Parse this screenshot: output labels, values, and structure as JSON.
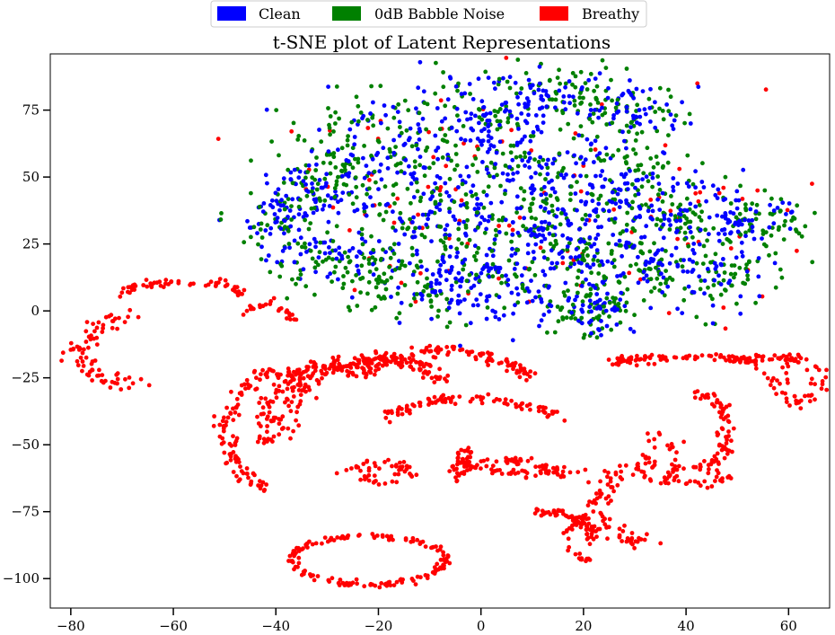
{
  "chart_data": {
    "type": "scatter",
    "title": "t-SNE plot of Latent Representations",
    "xlabel": "",
    "ylabel": "",
    "xlim": [
      -84,
      68
    ],
    "ylim": [
      -111,
      96
    ],
    "xticks": [
      -80,
      -60,
      -40,
      -20,
      0,
      20,
      40,
      60
    ],
    "yticks": [
      -100,
      -75,
      -50,
      -25,
      0,
      25,
      50,
      75
    ],
    "xtick_labels": [
      "−80",
      "−60",
      "−40",
      "−20",
      "0",
      "20",
      "40",
      "60"
    ],
    "ytick_labels": [
      "−100",
      "−75",
      "−50",
      "−25",
      "0",
      "25",
      "50",
      "75"
    ],
    "grid": false,
    "legend": {
      "placement": "top-center, outside plot",
      "entries": [
        "Clean",
        "0dB Babble Noise",
        "Breathy"
      ]
    },
    "colors": {
      "Clean": "#0000ff",
      "0dB Babble Noise": "#008000",
      "Breathy": "#ff0000"
    },
    "series": [
      {
        "name": "Clean",
        "color": "#0000ff",
        "clusters": [
          {
            "cx": -38,
            "cy": 35,
            "sx": 4,
            "sy": 8,
            "n": 60
          },
          {
            "cx": -30,
            "cy": 45,
            "sx": 5,
            "sy": 6,
            "n": 50
          },
          {
            "cx": -28,
            "cy": 20,
            "sx": 6,
            "sy": 5,
            "n": 50
          },
          {
            "cx": -20,
            "cy": 62,
            "sx": 8,
            "sy": 8,
            "n": 70
          },
          {
            "cx": -10,
            "cy": 40,
            "sx": 9,
            "sy": 10,
            "n": 90
          },
          {
            "cx": -5,
            "cy": 15,
            "sx": 9,
            "sy": 8,
            "n": 80
          },
          {
            "cx": 3,
            "cy": 5,
            "sx": 6,
            "sy": 6,
            "n": 60
          },
          {
            "cx": 0,
            "cy": 70,
            "sx": 8,
            "sy": 8,
            "n": 70
          },
          {
            "cx": 10,
            "cy": 50,
            "sx": 9,
            "sy": 9,
            "n": 90
          },
          {
            "cx": 12,
            "cy": 80,
            "sx": 7,
            "sy": 5,
            "n": 60
          },
          {
            "cx": 15,
            "cy": 25,
            "sx": 8,
            "sy": 9,
            "n": 80
          },
          {
            "cx": 22,
            "cy": 3,
            "sx": 4,
            "sy": 6,
            "n": 50
          },
          {
            "cx": 25,
            "cy": 45,
            "sx": 8,
            "sy": 8,
            "n": 70
          },
          {
            "cx": 30,
            "cy": 75,
            "sx": 5,
            "sy": 5,
            "n": 50
          },
          {
            "cx": 32,
            "cy": 20,
            "sx": 7,
            "sy": 9,
            "n": 70
          },
          {
            "cx": 40,
            "cy": 40,
            "sx": 6,
            "sy": 6,
            "n": 50
          },
          {
            "cx": 45,
            "cy": 15,
            "sx": 6,
            "sy": 8,
            "n": 50
          },
          {
            "cx": 52,
            "cy": 33,
            "sx": 5,
            "sy": 4,
            "n": 40
          }
        ]
      },
      {
        "name": "0dB Babble Noise",
        "color": "#008000",
        "clusters": [
          {
            "cx": -38,
            "cy": 30,
            "sx": 5,
            "sy": 10,
            "n": 60
          },
          {
            "cx": -30,
            "cy": 50,
            "sx": 5,
            "sy": 8,
            "n": 50
          },
          {
            "cx": -25,
            "cy": 15,
            "sx": 6,
            "sy": 6,
            "n": 50
          },
          {
            "cx": -22,
            "cy": 60,
            "sx": 8,
            "sy": 10,
            "n": 70
          },
          {
            "cx": -12,
            "cy": 35,
            "sx": 10,
            "sy": 12,
            "n": 90
          },
          {
            "cx": -8,
            "cy": 10,
            "sx": 9,
            "sy": 8,
            "n": 70
          },
          {
            "cx": 0,
            "cy": 68,
            "sx": 8,
            "sy": 10,
            "n": 70
          },
          {
            "cx": 8,
            "cy": 40,
            "sx": 10,
            "sy": 12,
            "n": 100
          },
          {
            "cx": 15,
            "cy": 82,
            "sx": 7,
            "sy": 5,
            "n": 60
          },
          {
            "cx": 18,
            "cy": 20,
            "sx": 8,
            "sy": 10,
            "n": 80
          },
          {
            "cx": 20,
            "cy": 0,
            "sx": 4,
            "sy": 6,
            "n": 50
          },
          {
            "cx": 27,
            "cy": 50,
            "sx": 8,
            "sy": 9,
            "n": 70
          },
          {
            "cx": 30,
            "cy": 72,
            "sx": 5,
            "sy": 6,
            "n": 50
          },
          {
            "cx": 34,
            "cy": 15,
            "sx": 7,
            "sy": 9,
            "n": 70
          },
          {
            "cx": 42,
            "cy": 35,
            "sx": 7,
            "sy": 6,
            "n": 60
          },
          {
            "cx": 48,
            "cy": 12,
            "sx": 6,
            "sy": 7,
            "n": 50
          },
          {
            "cx": 55,
            "cy": 33,
            "sx": 5,
            "sy": 4,
            "n": 40
          }
        ]
      },
      {
        "name": "Breathy",
        "color": "#ff0000",
        "scattered_in_upper_region": [
          {
            "cx": -15,
            "cy": 35,
            "sx": 20,
            "sy": 20,
            "n": 40
          },
          {
            "cx": 15,
            "cy": 40,
            "sx": 20,
            "sy": 22,
            "n": 40
          },
          {
            "cx": 38,
            "cy": 30,
            "sx": 10,
            "sy": 15,
            "n": 25
          }
        ],
        "arcs": [
          {
            "cx": -68,
            "cy": -15,
            "rx": 10,
            "ry": 12,
            "a0": 100,
            "a1": 270,
            "n": 80,
            "w": 2.5
          },
          {
            "cx": -58,
            "cy": 5,
            "rx": 12,
            "ry": 6,
            "a0": 10,
            "a1": 170,
            "n": 60,
            "w": 1.5
          },
          {
            "cx": -42,
            "cy": -3,
            "rx": 5,
            "ry": 5,
            "a0": 0,
            "a1": 170,
            "n": 25,
            "w": 1.2
          },
          {
            "cx": -38,
            "cy": -45,
            "rx": 12,
            "ry": 22,
            "a0": 90,
            "a1": 250,
            "n": 110,
            "w": 2.0
          },
          {
            "cx": -28,
            "cy": -42,
            "rx": 14,
            "ry": 22,
            "a0": 60,
            "a1": 200,
            "n": 120,
            "w": 2.0
          },
          {
            "cx": -20,
            "cy": -45,
            "rx": 18,
            "ry": 27,
            "a0": 45,
            "a1": 180,
            "n": 150,
            "w": 2.0
          },
          {
            "cx": -8,
            "cy": -35,
            "rx": 20,
            "ry": 20,
            "a0": 30,
            "a1": 150,
            "n": 110,
            "w": 1.8
          },
          {
            "cx": -2,
            "cy": -45,
            "rx": 18,
            "ry": 12,
            "a0": 20,
            "a1": 160,
            "n": 90,
            "w": 1.5
          },
          {
            "cx": -20,
            "cy": -60,
            "rx": 6,
            "ry": 3,
            "a0": 0,
            "a1": 360,
            "n": 50,
            "w": 1.5
          },
          {
            "cx": 5,
            "cy": -62,
            "rx": 10,
            "ry": 6,
            "a0": 20,
            "a1": 200,
            "n": 60,
            "w": 1.5
          },
          {
            "cx": 12,
            "cy": -55,
            "rx": 16,
            "ry": 6,
            "a0": 150,
            "a1": 300,
            "n": 70,
            "w": 1.5
          },
          {
            "cx": -22,
            "cy": -93,
            "rx": 15,
            "ry": 9,
            "a0": 0,
            "a1": 360,
            "n": 160,
            "w": 1.0
          },
          {
            "cx": 12,
            "cy": -85,
            "rx": 10,
            "ry": 10,
            "a0": 0,
            "a1": 100,
            "n": 70,
            "w": 1.5
          },
          {
            "cx": 20,
            "cy": -85,
            "rx": 3,
            "ry": 8,
            "a0": 90,
            "a1": 270,
            "n": 30,
            "w": 1.0
          },
          {
            "cx": 33,
            "cy": -72,
            "rx": 10,
            "ry": 14,
            "a0": 90,
            "a1": 270,
            "n": 80,
            "w": 2.0
          },
          {
            "cx": 42,
            "cy": -62,
            "rx": 6,
            "ry": 3,
            "a0": 0,
            "a1": 360,
            "n": 40,
            "w": 1.5
          },
          {
            "cx": 42,
            "cy": -45,
            "rx": 6,
            "ry": 14,
            "a0": -60,
            "a1": 90,
            "n": 70,
            "w": 1.5
          },
          {
            "cx": 35,
            "cy": -55,
            "rx": 3,
            "ry": 10,
            "a0": 0,
            "a1": 360,
            "n": 40,
            "w": 1.5
          },
          {
            "cx": 40,
            "cy": -20,
            "rx": 14,
            "ry": 3,
            "a0": 0,
            "a1": 180,
            "n": 70,
            "w": 1.2
          },
          {
            "cx": 55,
            "cy": -19,
            "rx": 6,
            "ry": 2,
            "a0": 0,
            "a1": 180,
            "n": 30,
            "w": 1.0
          },
          {
            "cx": 62,
            "cy": -26,
            "rx": 4,
            "ry": 8,
            "a0": 0,
            "a1": 360,
            "n": 60,
            "w": 2.0
          },
          {
            "cx": 30,
            "cy": -19,
            "rx": 4,
            "ry": 1,
            "a0": 0,
            "a1": 360,
            "n": 15,
            "w": 0.8
          }
        ]
      }
    ]
  }
}
